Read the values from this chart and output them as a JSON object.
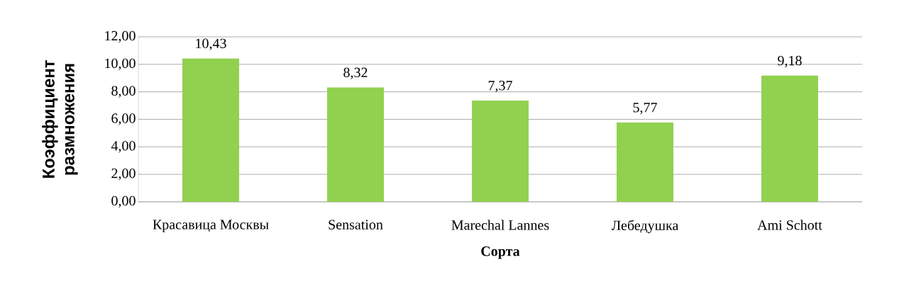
{
  "chart_data": {
    "type": "bar",
    "xlabel": "Сорта",
    "ylabel": "Коэффициент размножения",
    "categories": [
      "Красавица Москвы",
      "Sensation",
      "Marechal Lannes",
      "Лебедушка",
      "Ami Schott"
    ],
    "values": [
      10.43,
      8.32,
      7.37,
      5.77,
      9.18
    ],
    "value_labels": [
      "10,43",
      "8,32",
      "7,37",
      "5,77",
      "9,18"
    ],
    "color": "#92d050",
    "ylim": [
      0,
      12
    ],
    "yticks": [
      {
        "value": 0,
        "label": "0,00"
      },
      {
        "value": 2,
        "label": "2,00"
      },
      {
        "value": 4,
        "label": "4,00"
      },
      {
        "value": 6,
        "label": "6,00"
      },
      {
        "value": 8,
        "label": "8,00"
      },
      {
        "value": 10,
        "label": "10,00"
      },
      {
        "value": 12,
        "label": "12,00"
      }
    ],
    "grid": "y"
  }
}
